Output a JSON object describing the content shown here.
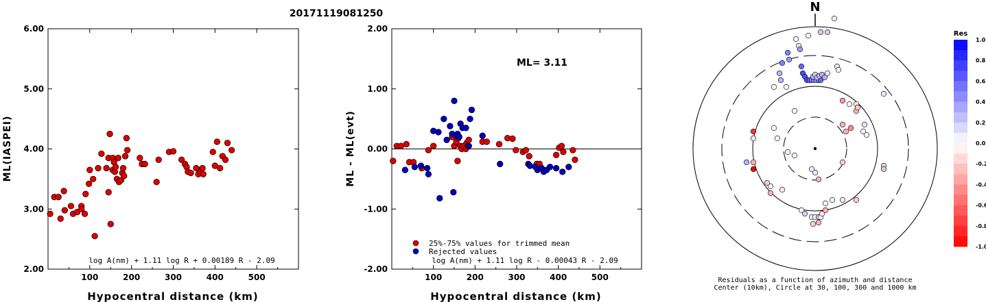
{
  "title": "20171119081250",
  "chart_data": [
    {
      "type": "scatter",
      "xlabel": "Hypocentral distance (km)",
      "ylabel": "ML(IASPEI)",
      "xlim": [
        0,
        600
      ],
      "ylim": [
        2.0,
        6.0
      ],
      "xticks": [
        "100",
        "200",
        "300",
        "400",
        "500"
      ],
      "yticks": [
        "2.00",
        "3.00",
        "4.00",
        "5.00",
        "6.00"
      ],
      "formula": "log A(nm) + 1.11 log R + 0.00189 R - 2.09",
      "marker_color": "#dd0000",
      "points": [
        [
          5,
          2.92
        ],
        [
          15,
          3.2
        ],
        [
          25,
          3.2
        ],
        [
          30,
          2.84
        ],
        [
          38,
          3.3
        ],
        [
          40,
          2.98
        ],
        [
          55,
          3.05
        ],
        [
          60,
          2.92
        ],
        [
          70,
          2.95
        ],
        [
          80,
          3.05
        ],
        [
          80,
          3.0
        ],
        [
          88,
          2.92
        ],
        [
          90,
          3.25
        ],
        [
          98,
          3.42
        ],
        [
          100,
          3.65
        ],
        [
          108,
          3.5
        ],
        [
          112,
          2.55
        ],
        [
          120,
          3.68
        ],
        [
          128,
          3.92
        ],
        [
          140,
          3.68
        ],
        [
          145,
          3.85
        ],
        [
          145,
          3.28
        ],
        [
          148,
          4.25
        ],
        [
          150,
          2.75
        ],
        [
          155,
          3.85
        ],
        [
          155,
          3.65
        ],
        [
          158,
          3.78
        ],
        [
          160,
          3.62
        ],
        [
          162,
          3.7
        ],
        [
          165,
          3.5
        ],
        [
          168,
          3.85
        ],
        [
          170,
          3.45
        ],
        [
          175,
          3.48
        ],
        [
          178,
          3.6
        ],
        [
          180,
          3.68
        ],
        [
          182,
          3.55
        ],
        [
          185,
          3.88
        ],
        [
          188,
          4.18
        ],
        [
          190,
          3.98
        ],
        [
          220,
          3.85
        ],
        [
          225,
          3.75
        ],
        [
          232,
          3.75
        ],
        [
          260,
          3.45
        ],
        [
          265,
          3.82
        ],
        [
          290,
          3.95
        ],
        [
          300,
          3.96
        ],
        [
          320,
          3.82
        ],
        [
          328,
          3.75
        ],
        [
          332,
          3.7
        ],
        [
          335,
          3.62
        ],
        [
          342,
          3.6
        ],
        [
          355,
          3.68
        ],
        [
          360,
          3.58
        ],
        [
          365,
          3.62
        ],
        [
          370,
          3.68
        ],
        [
          372,
          3.58
        ],
        [
          395,
          3.95
        ],
        [
          400,
          3.72
        ],
        [
          405,
          4.12
        ],
        [
          412,
          3.68
        ],
        [
          418,
          3.88
        ],
        [
          425,
          3.82
        ],
        [
          430,
          4.1
        ],
        [
          440,
          3.98
        ]
      ]
    },
    {
      "type": "scatter",
      "xlabel": "Hypocentral distance (km)",
      "ylabel": "ML - ML(evt)",
      "xlim": [
        0,
        600
      ],
      "ylim": [
        -2.0,
        2.0
      ],
      "xticks": [
        "100",
        "200",
        "300",
        "400",
        "500"
      ],
      "yticks": [
        "-2.00",
        "-1.00",
        "0.00",
        "1.00",
        "2.00"
      ],
      "annotation": "ML= 3.11",
      "formula": "log A(nm) + 1.11 log R - 0.00043 R - 2.09",
      "legend": [
        {
          "label": "25%-75% values for trimmed mean",
          "color": "#dd0000"
        },
        {
          "label": "Rejected values",
          "color": "#0000bb"
        }
      ],
      "series": [
        {
          "name": "25%-75% values for trimmed mean",
          "color": "#dd0000",
          "points": [
            [
              3,
              -0.2
            ],
            [
              12,
              0.05
            ],
            [
              22,
              0.05
            ],
            [
              35,
              0.08
            ],
            [
              42,
              -0.22
            ],
            [
              52,
              -0.22
            ],
            [
              72,
              -0.32
            ],
            [
              88,
              -0.02
            ],
            [
              100,
              0.05
            ],
            [
              145,
              0.2
            ],
            [
              150,
              0.05
            ],
            [
              155,
              0.12
            ],
            [
              158,
              -0.2
            ],
            [
              160,
              0.18
            ],
            [
              165,
              0.05
            ],
            [
              168,
              0.0
            ],
            [
              172,
              0.05
            ],
            [
              178,
              0.0
            ],
            [
              180,
              0.1
            ],
            [
              182,
              0.05
            ],
            [
              185,
              0.15
            ],
            [
              218,
              0.12
            ],
            [
              228,
              0.12
            ],
            [
              258,
              0.08
            ],
            [
              278,
              0.18
            ],
            [
              290,
              0.17
            ],
            [
              298,
              -0.02
            ],
            [
              315,
              -0.05
            ],
            [
              322,
              -0.02
            ],
            [
              330,
              -0.12
            ],
            [
              348,
              -0.25
            ],
            [
              355,
              -0.25
            ],
            [
              395,
              -0.1
            ],
            [
              402,
              0.02
            ],
            [
              408,
              0.05
            ],
            [
              412,
              -0.05
            ],
            [
              435,
              -0.02
            ],
            [
              440,
              -0.18
            ]
          ]
        },
        {
          "name": "Rejected values",
          "color": "#0000bb",
          "points": [
            [
              32,
              -0.35
            ],
            [
              55,
              -0.3
            ],
            [
              70,
              -0.28
            ],
            [
              85,
              -0.32
            ],
            [
              88,
              -0.42
            ],
            [
              100,
              0.3
            ],
            [
              112,
              0.28
            ],
            [
              115,
              -0.82
            ],
            [
              125,
              0.5
            ],
            [
              132,
              0.15
            ],
            [
              140,
              0.38
            ],
            [
              145,
              0.25
            ],
            [
              148,
              -0.72
            ],
            [
              150,
              0.8
            ],
            [
              155,
              0.22
            ],
            [
              158,
              0.25
            ],
            [
              162,
              0.2
            ],
            [
              165,
              0.42
            ],
            [
              170,
              0.35
            ],
            [
              178,
              0.35
            ],
            [
              185,
              0.05
            ],
            [
              188,
              0.5
            ],
            [
              192,
              0.65
            ],
            [
              218,
              0.22
            ],
            [
              260,
              -0.25
            ],
            [
              328,
              -0.25
            ],
            [
              332,
              -0.28
            ],
            [
              345,
              -0.3
            ],
            [
              350,
              -0.35
            ],
            [
              360,
              -0.32
            ],
            [
              365,
              -0.38
            ],
            [
              372,
              -0.35
            ],
            [
              380,
              -0.3
            ],
            [
              395,
              -0.32
            ],
            [
              410,
              -0.38
            ],
            [
              425,
              -0.3
            ]
          ]
        }
      ]
    },
    {
      "type": "polar-scatter",
      "north_label": "N",
      "caption_line1": "Residuals as a function of azimuth and distance",
      "caption_line2": "Center (10km), Circle at 30, 100, 300 and 1000 km",
      "colorbar_title": "Res",
      "colorbar_ticks": [
        "1.0",
        "0.8",
        "0.6",
        "0.4",
        "0.2",
        "0.0",
        "-0.2",
        "-0.4",
        "-0.6",
        "-0.8",
        "-1.0"
      ],
      "colorbar_range": [
        -1.0,
        1.0
      ],
      "points": [
        [
          -10,
          165,
          0.05
        ],
        [
          8,
          170,
          -0.25
        ],
        [
          -28,
          160,
          0.05
        ],
        [
          -24,
          150,
          0.1
        ],
        [
          -20,
          120,
          0.6
        ],
        [
          -18,
          110,
          0.7
        ],
        [
          -15,
          105,
          0.7
        ],
        [
          -12,
          100,
          0.7
        ],
        [
          -8,
          100,
          0.6
        ],
        [
          -5,
          100,
          0.5
        ],
        [
          -2,
          100,
          0.5
        ],
        [
          2,
          100,
          0.4
        ],
        [
          5,
          100,
          0.5
        ],
        [
          8,
          100,
          0.6
        ],
        [
          -3,
          105,
          0.3
        ],
        [
          0,
          108,
          0.2
        ],
        [
          3,
          104,
          0.2
        ],
        [
          6,
          106,
          0.3
        ],
        [
          10,
          108,
          0.3
        ],
        [
          14,
          104,
          0.3
        ],
        [
          -22,
          145,
          0.4
        ],
        [
          18,
          170,
          0.2
        ],
        [
          18,
          110,
          -0.1
        ],
        [
          -40,
          140,
          0.5
        ],
        [
          -38,
          130,
          0.4
        ],
        [
          -48,
          125,
          0.5
        ],
        [
          -50,
          100,
          0.3
        ],
        [
          -52,
          110,
          0.3
        ],
        [
          -42,
          90,
          0.05
        ],
        [
          -60,
          90,
          -0.05
        ],
        [
          -30,
          55,
          0.05
        ],
        [
          32,
          120,
          0.1
        ],
        [
          34,
          115,
          0.05
        ],
        [
          28,
          190,
          -0.1
        ],
        [
          40,
          70,
          -0.4
        ],
        [
          40,
          35,
          -0.3
        ],
        [
          45,
          25,
          -0.3
        ],
        [
          52,
          30,
          -0.45
        ],
        [
          50,
          65,
          -0.05
        ],
        [
          60,
          55,
          -0.3
        ],
        [
          60,
          65,
          -0.1
        ],
        [
          62,
          60,
          -0.2
        ],
        [
          70,
          25,
          -0.05
        ],
        [
          72,
          35,
          0.1
        ],
        [
          75,
          20,
          0.05
        ],
        [
          -90,
          25,
          -0.8
        ],
        [
          -60,
          30,
          -0.05
        ],
        [
          -55,
          15,
          0.05
        ],
        [
          -90,
          -20,
          -0.3
        ],
        [
          -90,
          -30,
          -1.0
        ],
        [
          -65,
          -65,
          -0.3
        ],
        [
          -65,
          -55,
          0.05
        ],
        [
          -70,
          -50,
          -0.2
        ],
        [
          -48,
          -60,
          -0.1
        ],
        [
          -40,
          -5,
          0.05
        ],
        [
          -20,
          -90,
          0.05
        ],
        [
          -15,
          -95,
          0.2
        ],
        [
          -5,
          -100,
          0.1
        ],
        [
          0,
          -100,
          0.05
        ],
        [
          5,
          -100,
          0.2
        ],
        [
          8,
          -100,
          0.05
        ],
        [
          10,
          -95,
          -0.1
        ],
        [
          15,
          -90,
          -0.3
        ],
        [
          -3,
          -110,
          -0.2
        ],
        [
          5,
          -108,
          -0.3
        ],
        [
          15,
          -80,
          0.05
        ],
        [
          25,
          -75,
          0.05
        ],
        [
          40,
          -75,
          -0.1
        ],
        [
          60,
          -75,
          -0.2
        ],
        [
          40,
          -20,
          -0.2
        ],
        [
          0,
          -35,
          0.1
        ],
        [
          5,
          -45,
          -0.3
        ],
        [
          -30,
          -10,
          0.05
        ],
        [
          -5,
          -30,
          0.1
        ],
        [
          -90,
          15,
          0.1
        ],
        [
          -100,
          -20,
          0.3
        ],
        [
          100,
          -25,
          -0.2
        ],
        [
          100,
          -30,
          0.2
        ],
        [
          100,
          80,
          0.1
        ]
      ]
    }
  ]
}
